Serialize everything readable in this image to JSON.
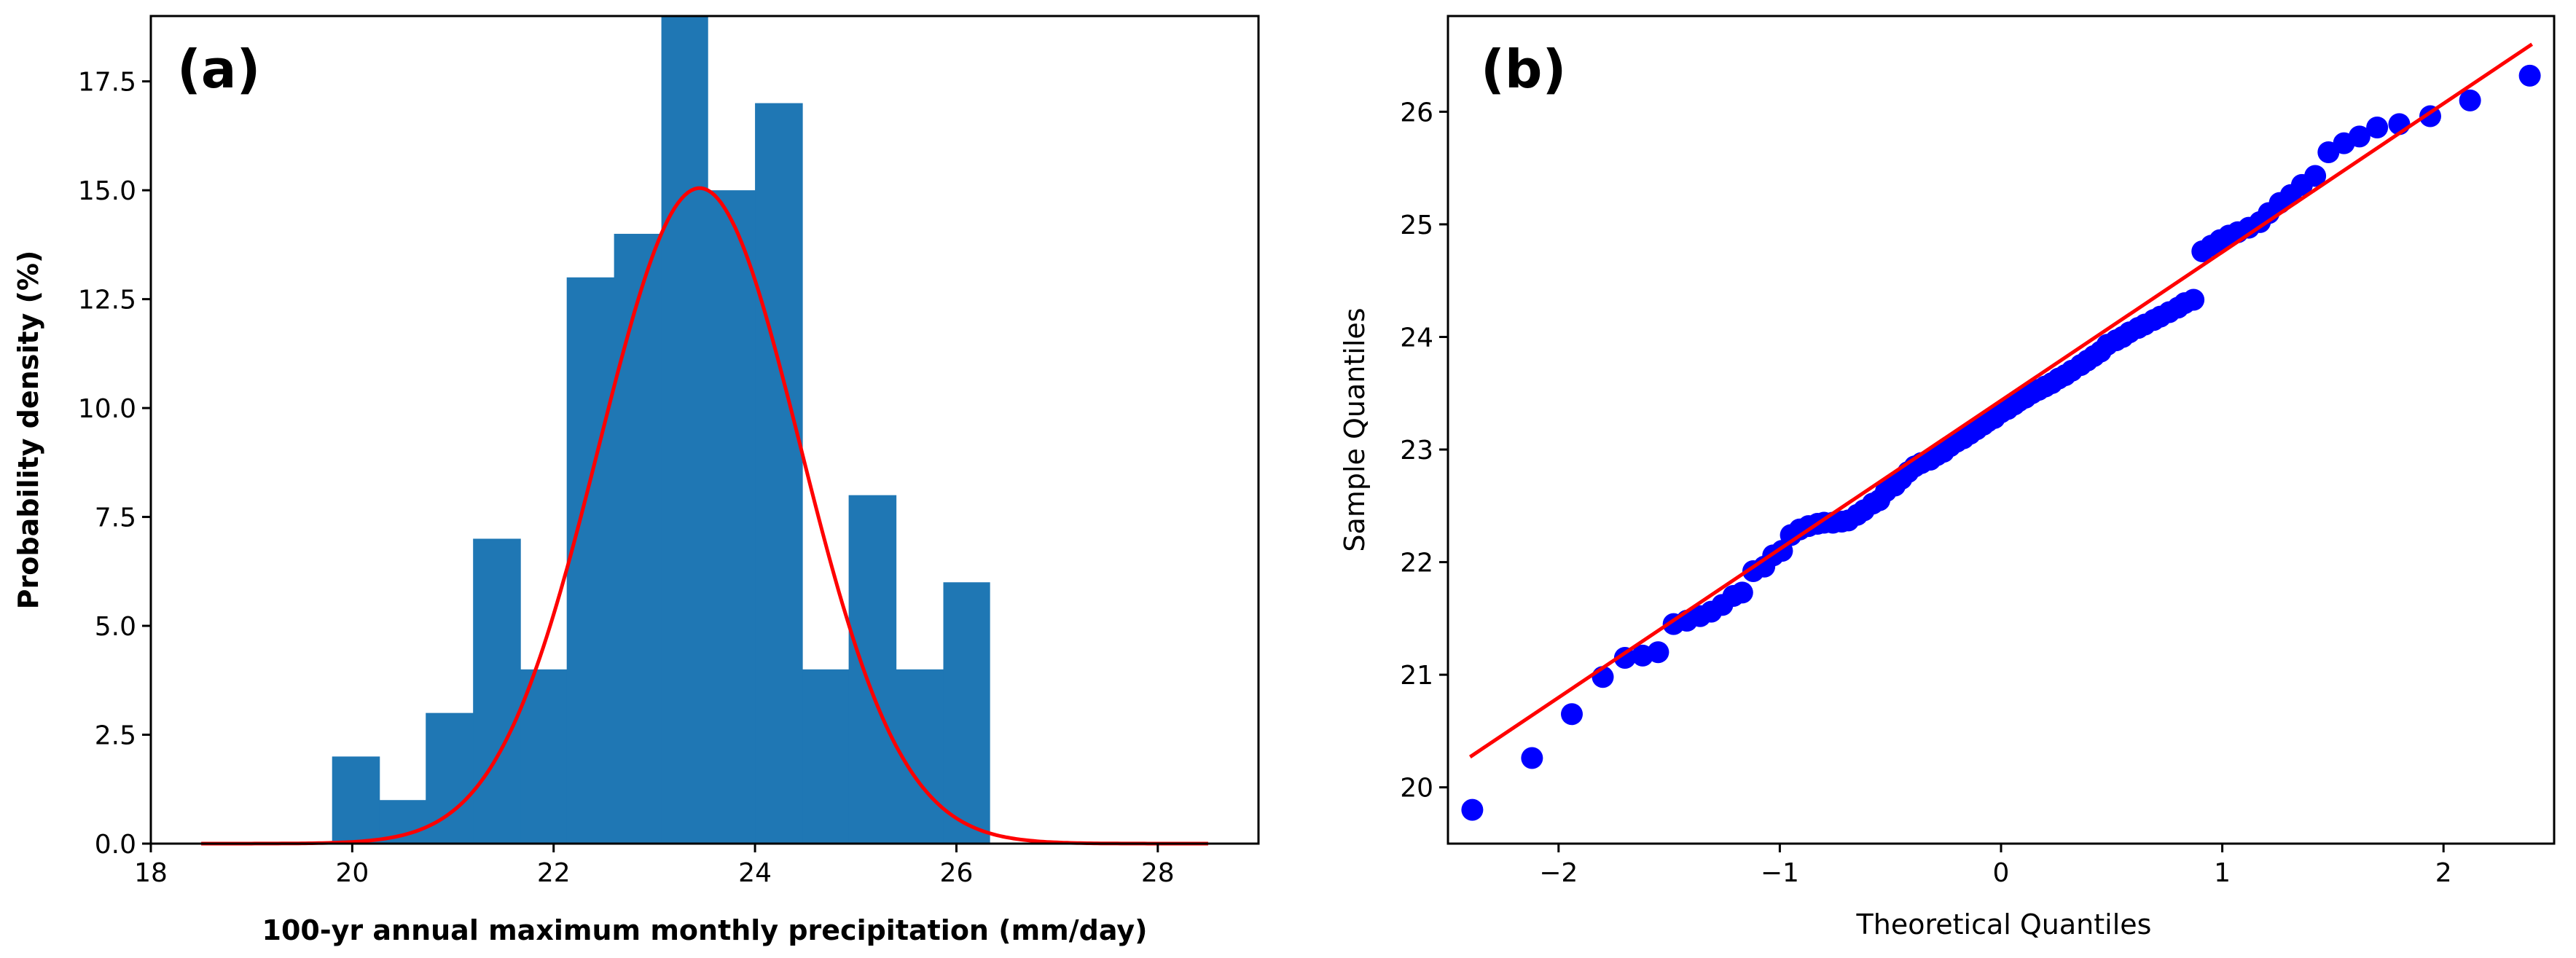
{
  "chart_data": [
    {
      "panel_label": "(a)",
      "type": "bar",
      "subtype": "histogram",
      "xlabel": "100-yr annual maximum monthly precipitation (mm/day)",
      "ylabel": "Probability density (%)",
      "xlim": [
        18,
        29
      ],
      "ylim": [
        0,
        19
      ],
      "xticks": [
        18,
        20,
        22,
        24,
        26,
        28
      ],
      "yticks": [
        0,
        2.5,
        5,
        7.5,
        10,
        12.5,
        15,
        17.5
      ],
      "xtick_labels": [
        "18",
        "20",
        "22",
        "24",
        "26",
        "28"
      ],
      "ytick_labels": [
        "0.0",
        "2.5",
        "5.0",
        "7.5",
        "10.0",
        "12.5",
        "15.0",
        "17.5"
      ],
      "bin_edges": [
        19.8,
        20.27,
        20.73,
        21.2,
        21.67,
        22.13,
        22.6,
        23.07,
        23.53,
        24.0,
        24.47,
        24.93,
        25.4,
        25.87,
        26.33
      ],
      "values": [
        2,
        1,
        3,
        7,
        4,
        13,
        14,
        19,
        15,
        17,
        4,
        8,
        4,
        6
      ],
      "bar_color": "#1f77b4",
      "fit_curve": {
        "name": "normal fit",
        "color": "#ff0000",
        "mean": 23.45,
        "sd": 1.0,
        "peak": 15.05,
        "x_range": [
          18.5,
          28.5
        ]
      }
    },
    {
      "panel_label": "(b)",
      "type": "scatter",
      "subtype": "qq-plot",
      "xlabel": "Theoretical Quantiles",
      "ylabel": "Sample Quantiles",
      "xlim": [
        -2.5,
        2.5
      ],
      "ylim": [
        19.5,
        26.85
      ],
      "xticks": [
        -2,
        -1,
        0,
        1,
        2
      ],
      "yticks": [
        20,
        21,
        22,
        23,
        24,
        25,
        26
      ],
      "xtick_labels": [
        "−2",
        "−1",
        "0",
        "1",
        "2"
      ],
      "ytick_labels": [
        "20",
        "21",
        "22",
        "23",
        "24",
        "25",
        "26"
      ],
      "point_color": "#0000ff",
      "line_color": "#ff0000",
      "reference_line": {
        "x": [
          -2.4,
          2.4
        ],
        "y": [
          20.27,
          26.6
        ]
      },
      "points": [
        [
          -2.39,
          19.8
        ],
        [
          -2.12,
          20.26
        ],
        [
          -1.94,
          20.65
        ],
        [
          -1.8,
          20.98
        ],
        [
          -1.7,
          21.15
        ],
        [
          -1.62,
          21.17
        ],
        [
          -1.55,
          21.2
        ],
        [
          -1.48,
          21.45
        ],
        [
          -1.42,
          21.48
        ],
        [
          -1.36,
          21.52
        ],
        [
          -1.31,
          21.56
        ],
        [
          -1.26,
          21.62
        ],
        [
          -1.21,
          21.7
        ],
        [
          -1.17,
          21.73
        ],
        [
          -1.12,
          21.92
        ],
        [
          -1.07,
          21.96
        ],
        [
          -1.03,
          22.06
        ],
        [
          -0.99,
          22.1
        ],
        [
          -0.95,
          22.24
        ],
        [
          -0.91,
          22.29
        ],
        [
          -0.87,
          22.32
        ],
        [
          -0.83,
          22.34
        ],
        [
          -0.8,
          22.35
        ],
        [
          -0.76,
          22.35
        ],
        [
          -0.72,
          22.36
        ],
        [
          -0.69,
          22.37
        ],
        [
          -0.65,
          22.42
        ],
        [
          -0.62,
          22.46
        ],
        [
          -0.58,
          22.52
        ],
        [
          -0.55,
          22.55
        ],
        [
          -0.52,
          22.63
        ],
        [
          -0.48,
          22.68
        ],
        [
          -0.45,
          22.74
        ],
        [
          -0.42,
          22.8
        ],
        [
          -0.39,
          22.85
        ],
        [
          -0.36,
          22.88
        ],
        [
          -0.32,
          22.91
        ],
        [
          -0.29,
          22.95
        ],
        [
          -0.26,
          22.98
        ],
        [
          -0.23,
          23.03
        ],
        [
          -0.2,
          23.07
        ],
        [
          -0.17,
          23.1
        ],
        [
          -0.14,
          23.14
        ],
        [
          -0.11,
          23.18
        ],
        [
          -0.08,
          23.22
        ],
        [
          -0.06,
          23.25
        ],
        [
          -0.03,
          23.28
        ],
        [
          0.0,
          23.33
        ],
        [
          0.03,
          23.36
        ],
        [
          0.06,
          23.4
        ],
        [
          0.08,
          23.43
        ],
        [
          0.11,
          23.46
        ],
        [
          0.14,
          23.5
        ],
        [
          0.17,
          23.53
        ],
        [
          0.2,
          23.56
        ],
        [
          0.23,
          23.59
        ],
        [
          0.26,
          23.63
        ],
        [
          0.29,
          23.66
        ],
        [
          0.32,
          23.7
        ],
        [
          0.36,
          23.75
        ],
        [
          0.39,
          23.79
        ],
        [
          0.42,
          23.83
        ],
        [
          0.45,
          23.87
        ],
        [
          0.48,
          23.93
        ],
        [
          0.52,
          23.97
        ],
        [
          0.55,
          24.0
        ],
        [
          0.58,
          24.04
        ],
        [
          0.62,
          24.08
        ],
        [
          0.65,
          24.11
        ],
        [
          0.69,
          24.15
        ],
        [
          0.72,
          24.18
        ],
        [
          0.76,
          24.22
        ],
        [
          0.8,
          24.26
        ],
        [
          0.83,
          24.3
        ],
        [
          0.87,
          24.33
        ],
        [
          0.91,
          24.76
        ],
        [
          0.95,
          24.81
        ],
        [
          0.99,
          24.86
        ],
        [
          1.03,
          24.9
        ],
        [
          1.07,
          24.93
        ],
        [
          1.12,
          24.97
        ],
        [
          1.17,
          25.02
        ],
        [
          1.21,
          25.1
        ],
        [
          1.26,
          25.19
        ],
        [
          1.31,
          25.26
        ],
        [
          1.36,
          25.35
        ],
        [
          1.42,
          25.43
        ],
        [
          1.48,
          25.64
        ],
        [
          1.55,
          25.72
        ],
        [
          1.62,
          25.78
        ],
        [
          1.7,
          25.86
        ],
        [
          1.8,
          25.89
        ],
        [
          1.94,
          25.96
        ],
        [
          2.12,
          26.1
        ],
        [
          2.39,
          26.32
        ]
      ]
    }
  ]
}
